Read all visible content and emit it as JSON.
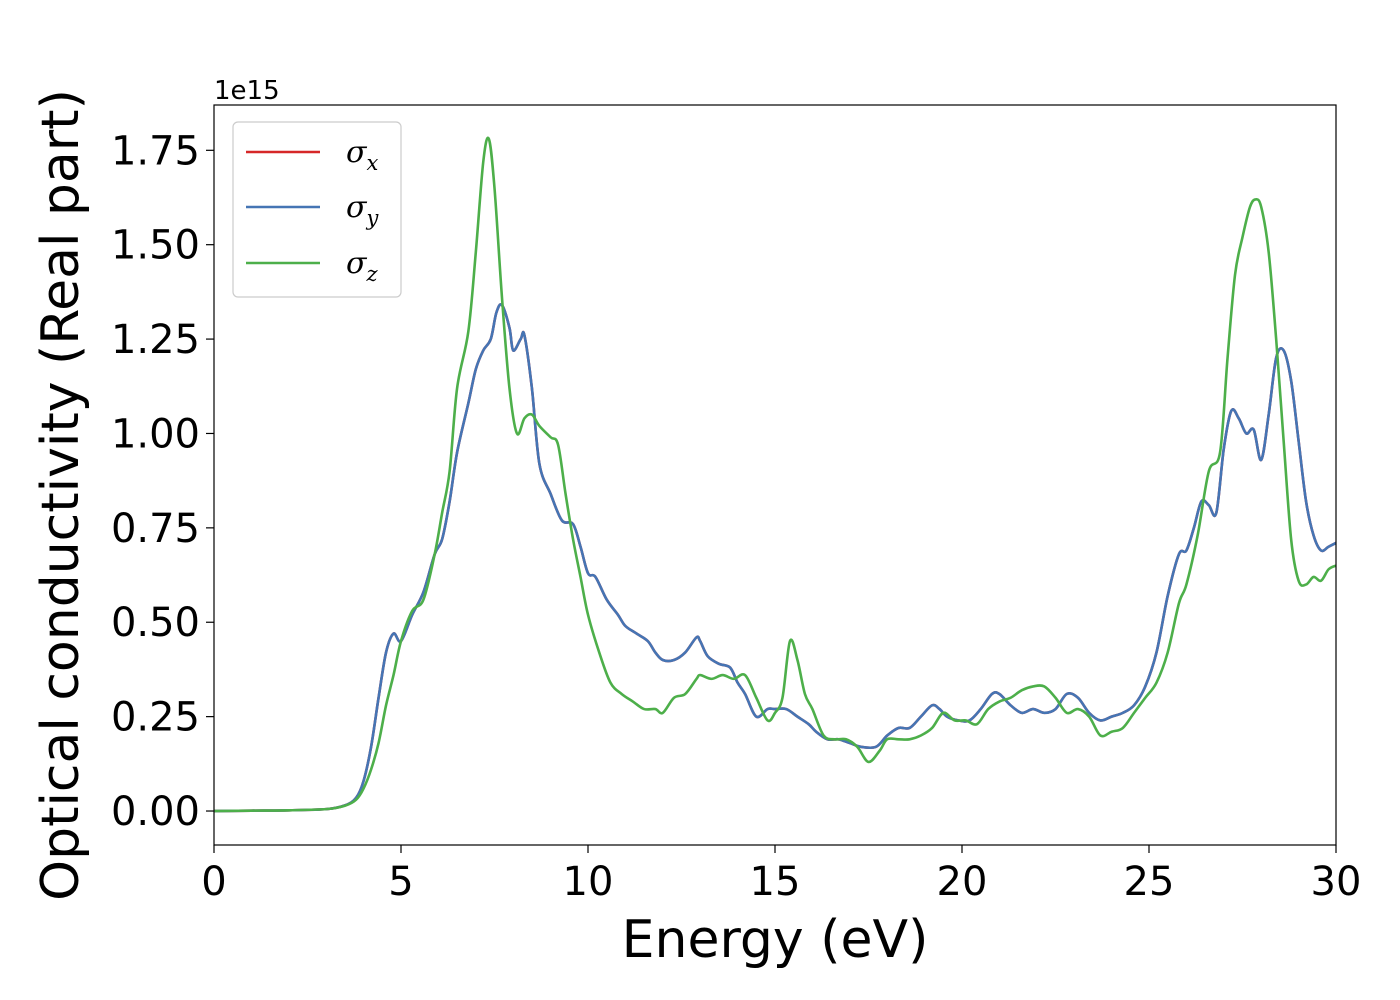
{
  "chart_data": {
    "type": "line",
    "xlabel": "Energy (eV)",
    "ylabel": "Optical conductivity (Real part)",
    "y_offset_text": "1e15",
    "xlim": [
      0,
      30
    ],
    "ylim": [
      -0.09,
      1.87
    ],
    "x_ticks": [
      "0",
      "5",
      "10",
      "15",
      "20",
      "25",
      "30"
    ],
    "x_tick_values": [
      0,
      5,
      10,
      15,
      20,
      25,
      30
    ],
    "y_ticks": [
      "0.00",
      "0.25",
      "0.50",
      "0.75",
      "1.00",
      "1.25",
      "1.50",
      "1.75"
    ],
    "y_tick_values": [
      0,
      0.25,
      0.5,
      0.75,
      1.0,
      1.25,
      1.5,
      1.75
    ],
    "grid": false,
    "legend_position": "top-left",
    "series": [
      {
        "name": "σx",
        "symbol": "σ",
        "subscript": "x",
        "color": "#d62728",
        "x": [
          0,
          1,
          2,
          3,
          3.5,
          3.8,
          4.0,
          4.2,
          4.4,
          4.6,
          4.8,
          5.0,
          5.3,
          5.6,
          5.9,
          6.1,
          6.3,
          6.5,
          6.8,
          7.0,
          7.2,
          7.4,
          7.55,
          7.7,
          7.9,
          8.0,
          8.2,
          8.3,
          8.5,
          8.7,
          9.0,
          9.3,
          9.6,
          9.8,
          10.0,
          10.2,
          10.5,
          10.8,
          11.0,
          11.3,
          11.6,
          11.8,
          12.0,
          12.3,
          12.6,
          12.9,
          13.0,
          13.2,
          13.5,
          13.8,
          14.0,
          14.2,
          14.5,
          14.8,
          15.0,
          15.3,
          15.6,
          15.9,
          16.1,
          16.4,
          16.7,
          17.0,
          17.3,
          17.7,
          18.0,
          18.3,
          18.6,
          18.9,
          19.2,
          19.4,
          19.6,
          19.9,
          20.2,
          20.5,
          20.8,
          21.0,
          21.3,
          21.6,
          21.9,
          22.2,
          22.5,
          22.8,
          23.1,
          23.4,
          23.7,
          24.0,
          24.3,
          24.6,
          24.9,
          25.2,
          25.5,
          25.8,
          26.0,
          26.2,
          26.4,
          26.6,
          26.8,
          27.0,
          27.2,
          27.4,
          27.6,
          27.8,
          28.0,
          28.2,
          28.4,
          28.6,
          28.8,
          29.0,
          29.2,
          29.4,
          29.6,
          29.8,
          30.0
        ],
        "values": [
          0,
          0.001,
          0.002,
          0.005,
          0.015,
          0.035,
          0.08,
          0.17,
          0.3,
          0.42,
          0.47,
          0.45,
          0.52,
          0.58,
          0.68,
          0.72,
          0.82,
          0.95,
          1.08,
          1.17,
          1.22,
          1.25,
          1.32,
          1.34,
          1.28,
          1.22,
          1.25,
          1.26,
          1.12,
          0.92,
          0.84,
          0.77,
          0.76,
          0.7,
          0.63,
          0.62,
          0.56,
          0.52,
          0.49,
          0.47,
          0.45,
          0.42,
          0.4,
          0.4,
          0.42,
          0.46,
          0.45,
          0.41,
          0.39,
          0.38,
          0.34,
          0.31,
          0.25,
          0.27,
          0.27,
          0.27,
          0.25,
          0.23,
          0.21,
          0.19,
          0.19,
          0.18,
          0.17,
          0.17,
          0.2,
          0.22,
          0.22,
          0.25,
          0.28,
          0.27,
          0.25,
          0.24,
          0.24,
          0.27,
          0.31,
          0.31,
          0.28,
          0.26,
          0.27,
          0.26,
          0.27,
          0.31,
          0.3,
          0.26,
          0.24,
          0.25,
          0.26,
          0.28,
          0.33,
          0.42,
          0.57,
          0.68,
          0.69,
          0.75,
          0.82,
          0.81,
          0.79,
          0.96,
          1.06,
          1.04,
          1.0,
          1.01,
          0.93,
          1.05,
          1.2,
          1.22,
          1.14,
          0.98,
          0.82,
          0.73,
          0.69,
          0.7,
          0.71
        ]
      },
      {
        "name": "σy",
        "symbol": "σ",
        "subscript": "y",
        "color": "#4575b4",
        "x": [
          0,
          1,
          2,
          3,
          3.5,
          3.8,
          4.0,
          4.2,
          4.4,
          4.6,
          4.8,
          5.0,
          5.3,
          5.6,
          5.9,
          6.1,
          6.3,
          6.5,
          6.8,
          7.0,
          7.2,
          7.4,
          7.55,
          7.7,
          7.9,
          8.0,
          8.2,
          8.3,
          8.5,
          8.7,
          9.0,
          9.3,
          9.6,
          9.8,
          10.0,
          10.2,
          10.5,
          10.8,
          11.0,
          11.3,
          11.6,
          11.8,
          12.0,
          12.3,
          12.6,
          12.9,
          13.0,
          13.2,
          13.5,
          13.8,
          14.0,
          14.2,
          14.5,
          14.8,
          15.0,
          15.3,
          15.6,
          15.9,
          16.1,
          16.4,
          16.7,
          17.0,
          17.3,
          17.7,
          18.0,
          18.3,
          18.6,
          18.9,
          19.2,
          19.4,
          19.6,
          19.9,
          20.2,
          20.5,
          20.8,
          21.0,
          21.3,
          21.6,
          21.9,
          22.2,
          22.5,
          22.8,
          23.1,
          23.4,
          23.7,
          24.0,
          24.3,
          24.6,
          24.9,
          25.2,
          25.5,
          25.8,
          26.0,
          26.2,
          26.4,
          26.6,
          26.8,
          27.0,
          27.2,
          27.4,
          27.6,
          27.8,
          28.0,
          28.2,
          28.4,
          28.6,
          28.8,
          29.0,
          29.2,
          29.4,
          29.6,
          29.8,
          30.0
        ],
        "values": [
          0,
          0.001,
          0.002,
          0.005,
          0.015,
          0.035,
          0.08,
          0.17,
          0.3,
          0.42,
          0.47,
          0.45,
          0.52,
          0.58,
          0.68,
          0.72,
          0.82,
          0.95,
          1.08,
          1.17,
          1.22,
          1.25,
          1.32,
          1.34,
          1.28,
          1.22,
          1.25,
          1.26,
          1.12,
          0.92,
          0.84,
          0.77,
          0.76,
          0.7,
          0.63,
          0.62,
          0.56,
          0.52,
          0.49,
          0.47,
          0.45,
          0.42,
          0.4,
          0.4,
          0.42,
          0.46,
          0.45,
          0.41,
          0.39,
          0.38,
          0.34,
          0.31,
          0.25,
          0.27,
          0.27,
          0.27,
          0.25,
          0.23,
          0.21,
          0.19,
          0.19,
          0.18,
          0.17,
          0.17,
          0.2,
          0.22,
          0.22,
          0.25,
          0.28,
          0.27,
          0.25,
          0.24,
          0.24,
          0.27,
          0.31,
          0.31,
          0.28,
          0.26,
          0.27,
          0.26,
          0.27,
          0.31,
          0.3,
          0.26,
          0.24,
          0.25,
          0.26,
          0.28,
          0.33,
          0.42,
          0.57,
          0.68,
          0.69,
          0.75,
          0.82,
          0.81,
          0.79,
          0.96,
          1.06,
          1.04,
          1.0,
          1.01,
          0.93,
          1.05,
          1.2,
          1.22,
          1.14,
          0.98,
          0.82,
          0.73,
          0.69,
          0.7,
          0.71
        ]
      },
      {
        "name": "σz",
        "symbol": "σ",
        "subscript": "z",
        "color": "#4daf4a",
        "x": [
          0,
          1,
          2,
          3,
          3.5,
          3.8,
          4.0,
          4.2,
          4.4,
          4.6,
          4.8,
          5.0,
          5.3,
          5.6,
          5.9,
          6.1,
          6.3,
          6.5,
          6.8,
          7.0,
          7.2,
          7.35,
          7.5,
          7.7,
          7.9,
          8.1,
          8.3,
          8.5,
          8.7,
          9.0,
          9.2,
          9.4,
          9.6,
          9.8,
          10.0,
          10.3,
          10.6,
          10.9,
          11.2,
          11.5,
          11.8,
          12.0,
          12.3,
          12.6,
          12.9,
          13.0,
          13.3,
          13.6,
          13.9,
          14.2,
          14.5,
          14.8,
          15.0,
          15.2,
          15.4,
          15.6,
          15.8,
          16.0,
          16.3,
          16.6,
          16.9,
          17.2,
          17.5,
          17.8,
          18.0,
          18.3,
          18.6,
          18.9,
          19.2,
          19.5,
          19.8,
          20.1,
          20.4,
          20.7,
          21.0,
          21.3,
          21.6,
          21.9,
          22.2,
          22.5,
          22.8,
          23.1,
          23.4,
          23.7,
          24.0,
          24.3,
          24.6,
          24.9,
          25.2,
          25.5,
          25.8,
          26.0,
          26.3,
          26.6,
          26.9,
          27.1,
          27.3,
          27.5,
          27.7,
          27.85,
          28.0,
          28.2,
          28.4,
          28.6,
          28.8,
          29.0,
          29.2,
          29.4,
          29.6,
          29.8,
          30.0
        ],
        "values": [
          0,
          0.001,
          0.002,
          0.005,
          0.014,
          0.03,
          0.06,
          0.11,
          0.18,
          0.28,
          0.36,
          0.45,
          0.53,
          0.56,
          0.68,
          0.79,
          0.9,
          1.12,
          1.27,
          1.48,
          1.72,
          1.78,
          1.65,
          1.36,
          1.12,
          1.0,
          1.04,
          1.05,
          1.02,
          0.99,
          0.97,
          0.84,
          0.72,
          0.62,
          0.52,
          0.42,
          0.34,
          0.31,
          0.29,
          0.27,
          0.27,
          0.26,
          0.3,
          0.31,
          0.35,
          0.36,
          0.35,
          0.36,
          0.35,
          0.36,
          0.3,
          0.24,
          0.26,
          0.3,
          0.45,
          0.4,
          0.31,
          0.27,
          0.2,
          0.19,
          0.19,
          0.17,
          0.13,
          0.16,
          0.19,
          0.19,
          0.19,
          0.2,
          0.22,
          0.26,
          0.24,
          0.24,
          0.23,
          0.27,
          0.29,
          0.3,
          0.32,
          0.33,
          0.33,
          0.3,
          0.26,
          0.27,
          0.25,
          0.2,
          0.21,
          0.22,
          0.26,
          0.3,
          0.34,
          0.42,
          0.55,
          0.6,
          0.73,
          0.9,
          0.95,
          1.2,
          1.42,
          1.52,
          1.6,
          1.62,
          1.6,
          1.48,
          1.25,
          0.98,
          0.72,
          0.61,
          0.6,
          0.62,
          0.61,
          0.64,
          0.65
        ]
      }
    ]
  }
}
